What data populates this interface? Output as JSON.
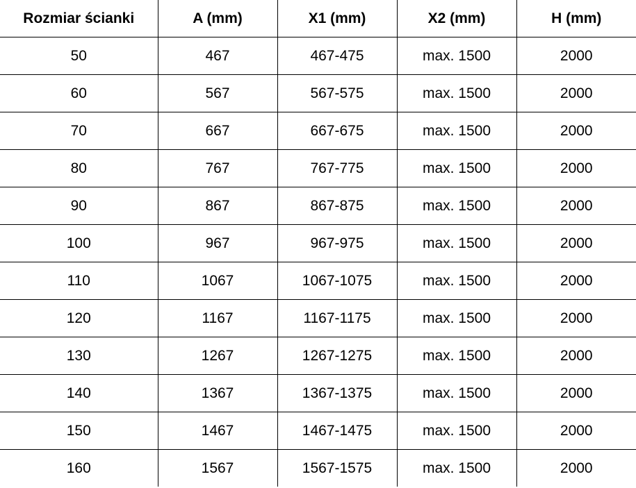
{
  "table": {
    "headers": [
      "Rozmiar ścianki",
      "A (mm)",
      "X1 (mm)",
      "X2 (mm)",
      "H (mm)"
    ],
    "rows": [
      [
        "50",
        "467",
        "467-475",
        "max. 1500",
        "2000"
      ],
      [
        "60",
        "567",
        "567-575",
        "max. 1500",
        "2000"
      ],
      [
        "70",
        "667",
        "667-675",
        "max. 1500",
        "2000"
      ],
      [
        "80",
        "767",
        "767-775",
        "max. 1500",
        "2000"
      ],
      [
        "90",
        "867",
        "867-875",
        "max. 1500",
        "2000"
      ],
      [
        "100",
        "967",
        "967-975",
        "max. 1500",
        "2000"
      ],
      [
        "110",
        "1067",
        "1067-1075",
        "max. 1500",
        "2000"
      ],
      [
        "120",
        "1167",
        "1167-1175",
        "max. 1500",
        "2000"
      ],
      [
        "130",
        "1267",
        "1267-1275",
        "max. 1500",
        "2000"
      ],
      [
        "140",
        "1367",
        "1367-1375",
        "max. 1500",
        "2000"
      ],
      [
        "150",
        "1467",
        "1467-1475",
        "max. 1500",
        "2000"
      ],
      [
        "160",
        "1567",
        "1567-1575",
        "max. 1500",
        "2000"
      ]
    ]
  }
}
